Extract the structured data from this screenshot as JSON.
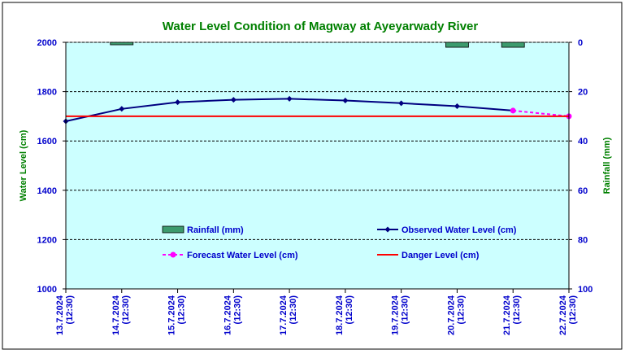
{
  "chart_data": {
    "type": "line",
    "title": "Water Level Condition of Magway at Ayeyarwady River",
    "ylabel_left": "Water Level (cm)",
    "ylabel_right": "Rainfall (mm)",
    "ylim_left": [
      1000,
      2000
    ],
    "ylim_right": [
      100,
      0
    ],
    "yticks_left": [
      "2000",
      "1800",
      "1600",
      "1400",
      "1200",
      "1000"
    ],
    "yticks_right": [
      "0",
      "20",
      "40",
      "60",
      "80",
      "100"
    ],
    "grid": true,
    "categories": [
      [
        "13.7.2024",
        "(12:30)"
      ],
      [
        "14.7.2024",
        "(12:30)"
      ],
      [
        "15.7.2024",
        "(12:30)"
      ],
      [
        "16.7.2024",
        "(12:30)"
      ],
      [
        "17.7.2024",
        "(12:30)"
      ],
      [
        "18.7.2024",
        "(12:30)"
      ],
      [
        "19.7.2024",
        "(12:30)"
      ],
      [
        "20.7.2024",
        "(12:30)"
      ],
      [
        "21.7.2024",
        "(12:30)"
      ],
      [
        "22.7.2024",
        "(12:30)"
      ]
    ],
    "series": [
      {
        "name": "Rainfall (mm)",
        "type": "bar",
        "color": "#3c9b6e",
        "values": [
          null,
          1,
          null,
          null,
          null,
          null,
          null,
          2,
          2,
          null
        ]
      },
      {
        "name": "Observed Water Level (cm)",
        "type": "line",
        "color": "#000080",
        "values": [
          1680,
          1730,
          1757,
          1767,
          1771,
          1764,
          1753,
          1741,
          1723,
          null
        ]
      },
      {
        "name": "Forecast Water Level (cm)",
        "type": "line",
        "style": "dashed",
        "color": "#ff00ff",
        "values": [
          null,
          null,
          null,
          null,
          null,
          null,
          null,
          null,
          1723,
          1700
        ]
      },
      {
        "name": "Danger Level (cm)",
        "type": "line",
        "color": "#ff0000",
        "values": [
          1700,
          1700,
          1700,
          1700,
          1700,
          1700,
          1700,
          1700,
          1700,
          1700
        ]
      }
    ],
    "colors": {
      "plot_bg": "#ccffff",
      "title": "#008000",
      "axis_text": "#0000cc",
      "border": "#00008b"
    }
  }
}
